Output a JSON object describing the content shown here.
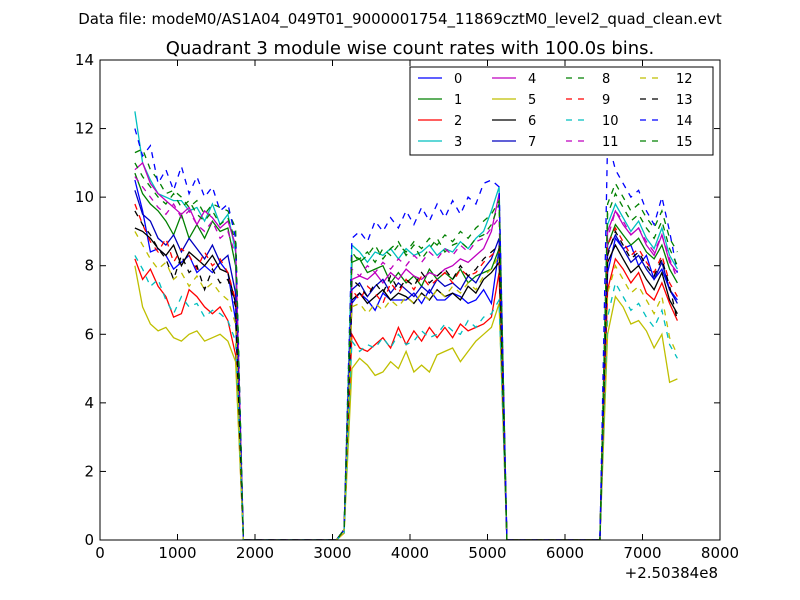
{
  "chart_data": {
    "type": "line",
    "suptitle": "Data file: modeM0/AS1A04_049T01_9000001754_11869cztM0_level2_quad_clean.evt",
    "title": "Quadrant 3 module wise count rates with 100.0s bins.",
    "xlabel": "",
    "ylabel": "",
    "x_offset_label": "+2.50384e8",
    "xlim": [
      0,
      8000
    ],
    "ylim": [
      0,
      14
    ],
    "xticks": [
      "0",
      "1000",
      "2000",
      "3000",
      "4000",
      "5000",
      "6000",
      "7000",
      "8000"
    ],
    "yticks": [
      "0",
      "2",
      "4",
      "6",
      "8",
      "10",
      "12",
      "14"
    ],
    "grid": false,
    "legend_position": "top-right",
    "segments": [
      {
        "start": 450,
        "count": 14
      },
      {
        "start": 3150,
        "count": 21
      },
      {
        "start": 6550,
        "count": 10
      }
    ],
    "series": [
      {
        "name": "0",
        "color": "#0000ff",
        "dash": "solid",
        "seg_values": [
          [
            10.5,
            9.6,
            8.4,
            8.5,
            8.3,
            7.9,
            8.1,
            8.3,
            7.8,
            8.0,
            7.8,
            8.1,
            7.8,
            6.4
          ],
          [
            0.3,
            6.9,
            7.2,
            7.0,
            6.7,
            7.2,
            7.0,
            7.0,
            7.0,
            7.2,
            6.9,
            7.3,
            7.0,
            7.0,
            7.2,
            7.1,
            6.9,
            7.0,
            7.3,
            6.9,
            8.5
          ],
          [
            7.8,
            8.8,
            8.5,
            8.6,
            8.0,
            8.3,
            7.6,
            7.9,
            7.3,
            7.0
          ]
        ]
      },
      {
        "name": "1",
        "color": "#008000",
        "dash": "solid",
        "seg_values": [
          [
            10.7,
            10.1,
            9.8,
            9.6,
            9.3,
            8.9,
            9.5,
            8.8,
            9.2,
            8.8,
            9.3,
            9.0,
            9.1,
            8.0
          ],
          [
            0.3,
            8.1,
            8.2,
            7.8,
            7.9,
            8.0,
            7.5,
            7.8,
            7.5,
            7.7,
            7.4,
            7.9,
            7.6,
            7.8,
            7.6,
            7.9,
            7.5,
            7.7,
            7.8,
            7.9,
            8.5
          ],
          [
            8.6,
            9.2,
            8.9,
            8.6,
            8.8,
            8.4,
            8.2,
            8.6,
            7.9,
            7.5
          ]
        ]
      },
      {
        "name": "2",
        "color": "#ff0000",
        "dash": "solid",
        "seg_values": [
          [
            8.2,
            7.6,
            7.9,
            7.4,
            7.1,
            6.5,
            6.6,
            7.3,
            7.1,
            6.8,
            6.6,
            6.8,
            6.4,
            5.4
          ],
          [
            0.2,
            6.0,
            5.6,
            5.5,
            5.7,
            5.9,
            5.6,
            6.2,
            5.7,
            6.1,
            5.8,
            6.2,
            5.9,
            6.2,
            5.9,
            6.3,
            6.1,
            6.2,
            6.3,
            6.5,
            7.8
          ],
          [
            7.3,
            8.2,
            7.9,
            7.5,
            7.8,
            7.2,
            7.0,
            7.5,
            6.9,
            6.4
          ]
        ]
      },
      {
        "name": "3",
        "color": "#00bfbf",
        "dash": "solid",
        "seg_values": [
          [
            12.5,
            11.0,
            10.5,
            10.1,
            10.0,
            9.9,
            9.9,
            9.6,
            9.7,
            9.3,
            9.8,
            9.2,
            9.5,
            8.4
          ],
          [
            0.3,
            8.6,
            8.4,
            8.1,
            8.4,
            8.3,
            8.5,
            8.2,
            8.5,
            8.3,
            8.4,
            8.6,
            8.3,
            8.5,
            8.4,
            8.7,
            8.5,
            8.8,
            9.0,
            9.6,
            10.3
          ],
          [
            9.2,
            9.8,
            9.4,
            9.0,
            9.3,
            8.8,
            8.5,
            9.1,
            8.3,
            7.9
          ]
        ]
      },
      {
        "name": "4",
        "color": "#bf00bf",
        "dash": "solid",
        "seg_values": [
          [
            10.8,
            11.0,
            10.4,
            10.1,
            9.9,
            9.7,
            9.5,
            9.7,
            9.2,
            9.6,
            9.4,
            9.1,
            9.3,
            8.6
          ],
          [
            0.3,
            7.6,
            7.7,
            7.6,
            7.8,
            7.5,
            7.8,
            7.6,
            7.9,
            7.7,
            7.6,
            7.8,
            7.7,
            7.9,
            8.0,
            8.2,
            8.1,
            8.3,
            8.5,
            9.0,
            10.1
          ],
          [
            9.0,
            9.6,
            9.2,
            8.9,
            9.1,
            8.6,
            8.3,
            8.9,
            8.1,
            7.8
          ]
        ]
      },
      {
        "name": "5",
        "color": "#bfbf00",
        "dash": "solid",
        "seg_values": [
          [
            8.0,
            6.8,
            6.3,
            6.1,
            6.2,
            5.9,
            5.8,
            6.0,
            6.1,
            5.8,
            5.9,
            6.0,
            5.8,
            5.2
          ],
          [
            0.2,
            5.0,
            5.3,
            5.1,
            4.8,
            4.9,
            5.2,
            5.0,
            5.5,
            4.9,
            5.1,
            4.9,
            5.4,
            5.5,
            5.6,
            5.2,
            5.5,
            5.8,
            6.0,
            6.2,
            6.9
          ],
          [
            6.0,
            7.1,
            6.8,
            6.3,
            6.4,
            6.1,
            5.6,
            6.0,
            4.6,
            4.7
          ]
        ]
      },
      {
        "name": "6",
        "color": "#000000",
        "dash": "solid",
        "seg_values": [
          [
            9.1,
            9.0,
            8.8,
            8.5,
            8.3,
            8.6,
            8.0,
            8.4,
            8.2,
            8.0,
            8.3,
            7.9,
            7.8,
            6.9
          ],
          [
            0.3,
            7.0,
            7.2,
            6.9,
            7.1,
            7.3,
            7.0,
            7.2,
            7.1,
            6.9,
            7.2,
            7.0,
            7.3,
            7.1,
            7.2,
            7.0,
            7.4,
            7.2,
            7.6,
            7.8,
            8.1
          ],
          [
            8.1,
            8.6,
            8.2,
            7.8,
            8.0,
            7.6,
            7.3,
            7.8,
            7.0,
            6.6
          ]
        ]
      },
      {
        "name": "7",
        "color": "#0000bf",
        "dash": "solid",
        "seg_values": [
          [
            10.2,
            9.5,
            9.3,
            8.8,
            8.6,
            8.9,
            8.4,
            8.8,
            8.5,
            8.2,
            8.6,
            8.1,
            8.3,
            7.2
          ],
          [
            0.3,
            7.3,
            7.5,
            7.1,
            7.4,
            7.6,
            7.2,
            7.5,
            7.3,
            7.1,
            7.4,
            7.2,
            7.6,
            7.4,
            7.5,
            7.3,
            7.7,
            7.5,
            7.9,
            8.2,
            8.8
          ],
          [
            8.4,
            8.9,
            8.5,
            8.1,
            8.3,
            7.9,
            7.6,
            8.1,
            7.3,
            6.9
          ]
        ]
      },
      {
        "name": "8",
        "color": "#008000",
        "dash": "dashed",
        "seg_values": [
          [
            11.3,
            11.4,
            10.8,
            10.5,
            10.1,
            10.2,
            10.0,
            9.7,
            9.9,
            9.5,
            9.8,
            9.7,
            9.6,
            9.1
          ],
          [
            0.3,
            8.4,
            8.1,
            8.3,
            8.6,
            8.2,
            8.5,
            8.7,
            8.3,
            8.6,
            8.2,
            8.5,
            8.8,
            8.4,
            8.6,
            8.7,
            8.5,
            8.8,
            8.9,
            9.2,
            9.8
          ],
          [
            9.8,
            10.4,
            10.0,
            9.6,
            9.8,
            9.4,
            9.1,
            9.6,
            8.8,
            8.4
          ]
        ]
      },
      {
        "name": "9",
        "color": "#ff0000",
        "dash": "dashed",
        "seg_values": [
          [
            9.8,
            9.2,
            8.7,
            8.4,
            8.8,
            8.1,
            8.5,
            8.3,
            7.9,
            8.4,
            8.0,
            8.2,
            7.8,
            7.0
          ],
          [
            0.3,
            7.3,
            7.0,
            7.4,
            7.2,
            6.9,
            7.5,
            7.2,
            7.6,
            7.3,
            7.7,
            7.4,
            7.6,
            7.8,
            7.5,
            7.9,
            7.7,
            7.8,
            8.1,
            8.3,
            8.5
          ],
          [
            8.6,
            9.1,
            8.7,
            8.3,
            8.5,
            8.1,
            7.8,
            8.3,
            7.5,
            7.1
          ]
        ]
      },
      {
        "name": "10",
        "color": "#00bfbf",
        "dash": "dashed",
        "seg_values": [
          [
            8.3,
            7.9,
            7.4,
            7.6,
            7.0,
            6.6,
            7.1,
            6.8,
            6.9,
            6.5,
            6.7,
            6.6,
            6.4,
            5.8
          ],
          [
            0.2,
            5.8,
            5.5,
            5.7,
            5.6,
            5.9,
            5.6,
            6.0,
            5.7,
            5.8,
            6.1,
            5.9,
            6.0,
            6.3,
            6.1,
            6.0,
            6.4,
            6.2,
            6.5,
            6.6,
            7.0
          ],
          [
            6.5,
            7.5,
            7.1,
            6.7,
            6.9,
            6.5,
            6.2,
            6.7,
            5.7,
            5.3
          ]
        ]
      },
      {
        "name": "11",
        "color": "#bf00bf",
        "dash": "dashed",
        "seg_values": [
          [
            10.6,
            10.3,
            10.0,
            9.7,
            9.5,
            9.8,
            9.4,
            9.6,
            9.2,
            9.0,
            9.3,
            8.8,
            9.0,
            8.3
          ],
          [
            0.3,
            7.9,
            7.7,
            8.0,
            7.8,
            8.1,
            7.9,
            8.2,
            8.0,
            8.3,
            8.1,
            8.4,
            8.2,
            8.5,
            8.3,
            8.6,
            8.4,
            8.7,
            8.8,
            9.1,
            9.4
          ],
          [
            8.8,
            9.6,
            9.3,
            8.9,
            9.1,
            8.7,
            8.4,
            8.9,
            8.2,
            7.6
          ]
        ]
      },
      {
        "name": "12",
        "color": "#bfbf00",
        "dash": "dashed",
        "seg_values": [
          [
            9.0,
            8.6,
            8.2,
            7.9,
            8.1,
            7.6,
            7.8,
            7.4,
            7.7,
            7.3,
            7.5,
            7.2,
            7.0,
            6.3
          ],
          [
            0.3,
            6.8,
            6.9,
            6.6,
            6.9,
            6.7,
            7.0,
            6.8,
            7.1,
            6.9,
            7.2,
            7.0,
            7.3,
            7.1,
            7.4,
            7.2,
            7.5,
            7.3,
            7.7,
            7.9,
            8.3
          ],
          [
            7.2,
            8.0,
            7.6,
            7.2,
            7.4,
            7.0,
            6.6,
            7.1,
            5.9,
            5.4
          ]
        ]
      },
      {
        "name": "13",
        "color": "#000000",
        "dash": "dashed",
        "seg_values": [
          [
            9.6,
            9.2,
            8.9,
            8.5,
            8.2,
            7.6,
            8.3,
            7.8,
            8.0,
            7.3,
            7.9,
            7.5,
            7.6,
            6.8
          ],
          [
            0.3,
            7.6,
            7.4,
            7.1,
            7.5,
            7.2,
            7.7,
            7.3,
            7.6,
            7.4,
            7.8,
            7.5,
            7.7,
            7.9,
            7.6,
            8.0,
            7.7,
            7.9,
            8.2,
            8.4,
            8.6
          ],
          [
            8.3,
            9.0,
            8.6,
            8.2,
            8.4,
            8.0,
            7.7,
            8.2,
            7.4,
            6.4
          ]
        ]
      },
      {
        "name": "14",
        "color": "#0000ff",
        "dash": "dashed",
        "seg_values": [
          [
            12.0,
            11.2,
            11.5,
            10.4,
            10.8,
            10.2,
            10.9,
            10.1,
            10.6,
            10.0,
            10.3,
            9.6,
            9.8,
            8.8
          ],
          [
            0.3,
            8.8,
            9.0,
            8.7,
            9.3,
            9.0,
            9.4,
            9.1,
            9.6,
            9.2,
            9.7,
            9.3,
            9.8,
            9.4,
            9.9,
            9.5,
            10.0,
            9.8,
            10.4,
            10.5,
            10.3
          ],
          [
            11.7,
            10.8,
            10.4,
            10.0,
            10.2,
            9.6,
            9.2,
            10.0,
            9.0,
            7.8
          ]
        ]
      },
      {
        "name": "15",
        "color": "#008000",
        "dash": "dashed",
        "seg_values": [
          [
            11.0,
            10.6,
            10.3,
            10.0,
            9.8,
            10.1,
            9.7,
            9.9,
            9.5,
            9.3,
            9.6,
            9.2,
            9.4,
            8.7
          ],
          [
            0.3,
            8.3,
            8.2,
            8.4,
            8.1,
            8.5,
            8.3,
            8.6,
            8.4,
            8.7,
            8.5,
            8.8,
            8.6,
            8.9,
            8.7,
            9.0,
            8.8,
            9.1,
            9.3,
            9.5,
            9.9
          ],
          [
            9.5,
            10.1,
            9.7,
            9.3,
            9.5,
            9.1,
            8.8,
            9.3,
            8.5,
            8.0
          ]
        ]
      }
    ]
  }
}
